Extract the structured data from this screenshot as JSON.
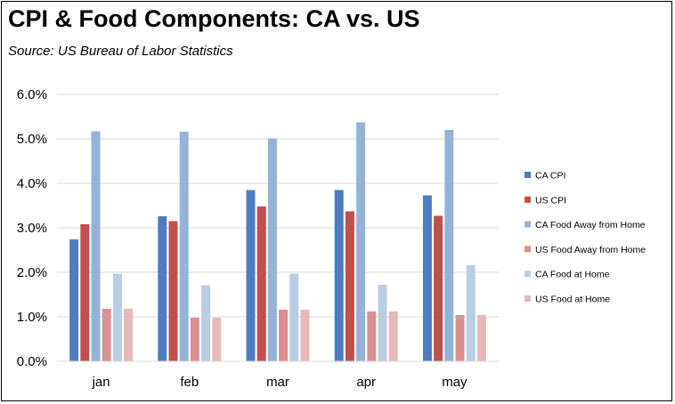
{
  "header": {
    "title": "CPI & Food Components:  CA vs. US",
    "subtitle": "Source:  US Bureau of Labor Statistics"
  },
  "chart_data": {
    "type": "bar",
    "title": "CPI & Food Components:  CA vs. US",
    "subtitle": "Source:  US Bureau of Labor Statistics",
    "xlabel": "",
    "ylabel": "",
    "categories": [
      "jan",
      "feb",
      "mar",
      "apr",
      "may"
    ],
    "ylim": [
      0,
      0.06
    ],
    "yticks": [
      "0.0%",
      "1.0%",
      "2.0%",
      "3.0%",
      "4.0%",
      "5.0%",
      "6.0%"
    ],
    "ytick_values": [
      0,
      0.01,
      0.02,
      0.03,
      0.04,
      0.05,
      0.06
    ],
    "grid": true,
    "legend_position": "right",
    "series": [
      {
        "name": "CA CPI",
        "color": "#4f7cc0",
        "values": [
          0.0274,
          0.0326,
          0.0385,
          0.0385,
          0.0373
        ]
      },
      {
        "name": "US CPI",
        "color": "#c0504d",
        "values": [
          0.0308,
          0.0315,
          0.0348,
          0.0337,
          0.0327
        ]
      },
      {
        "name": "CA Food Away from Home",
        "color": "#95b3d7",
        "values": [
          0.0517,
          0.0516,
          0.0501,
          0.0537,
          0.052
        ]
      },
      {
        "name": "US Food Away from Home",
        "color": "#d9908e",
        "values": [
          0.0118,
          0.0098,
          0.0116,
          0.0112,
          0.0104
        ]
      },
      {
        "name": "CA Food at Home",
        "color": "#b9cde5",
        "values": [
          0.0197,
          0.0171,
          0.0197,
          0.0172,
          0.0216
        ]
      },
      {
        "name": "US Food at Home",
        "color": "#e6b9b8",
        "values": [
          0.0118,
          0.0098,
          0.0116,
          0.0112,
          0.0104
        ]
      }
    ]
  }
}
